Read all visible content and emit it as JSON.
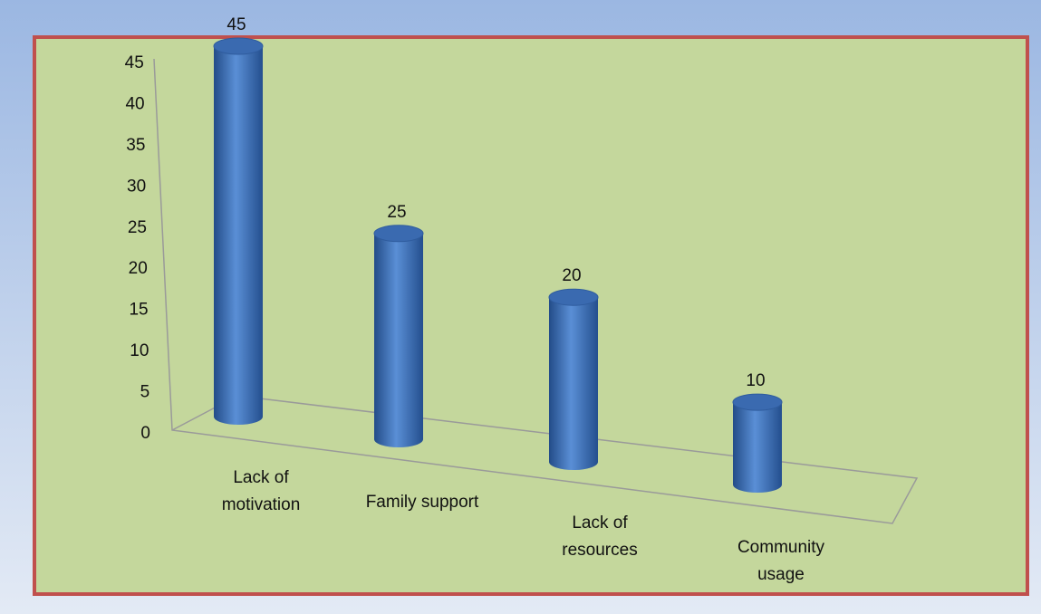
{
  "chart_data": {
    "type": "bar",
    "shape": "cylinder",
    "categories": [
      "Lack of motivation",
      "Family support",
      "Lack of resources",
      "Community usage"
    ],
    "values": [
      45,
      25,
      20,
      10
    ],
    "color": "#3a6ab0",
    "ylim": [
      0,
      45
    ],
    "yticks": [
      0,
      5,
      10,
      15,
      20,
      25,
      30,
      35,
      40,
      45
    ],
    "grid": false
  }
}
